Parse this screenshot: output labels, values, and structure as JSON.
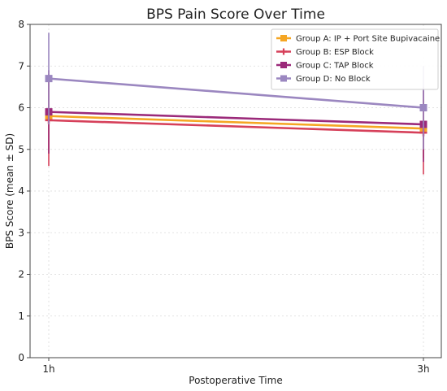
{
  "chart_data": {
    "type": "line",
    "title": "BPS Pain Score Over Time",
    "xlabel": "Postoperative Time",
    "ylabel": "BPS Score (mean ± SD)",
    "categories": [
      "1h",
      "3h"
    ],
    "ylim": [
      0,
      8
    ],
    "yticks": [
      0,
      1,
      2,
      3,
      4,
      5,
      6,
      7,
      8
    ],
    "grid": true,
    "legend_position": "top-right",
    "series": [
      {
        "name": "Group A: IP + Port Site Bupivacaine",
        "values": [
          5.8,
          5.5
        ],
        "sd": [
          0.9,
          0.7
        ],
        "color": "#f5a623",
        "marker": "square"
      },
      {
        "name": "Group B: ESP Block",
        "values": [
          5.7,
          5.4
        ],
        "sd": [
          1.1,
          1.0
        ],
        "color": "#d6405a",
        "marker": "plus"
      },
      {
        "name": "Group C: TAP Block",
        "values": [
          5.9,
          5.6
        ],
        "sd": [
          1.0,
          0.9
        ],
        "color": "#9b2a7a",
        "marker": "square"
      },
      {
        "name": "Group D: No Block",
        "values": [
          6.7,
          6.0
        ],
        "sd": [
          1.1,
          1.0
        ],
        "color": "#9b87c0",
        "marker": "square"
      }
    ]
  }
}
